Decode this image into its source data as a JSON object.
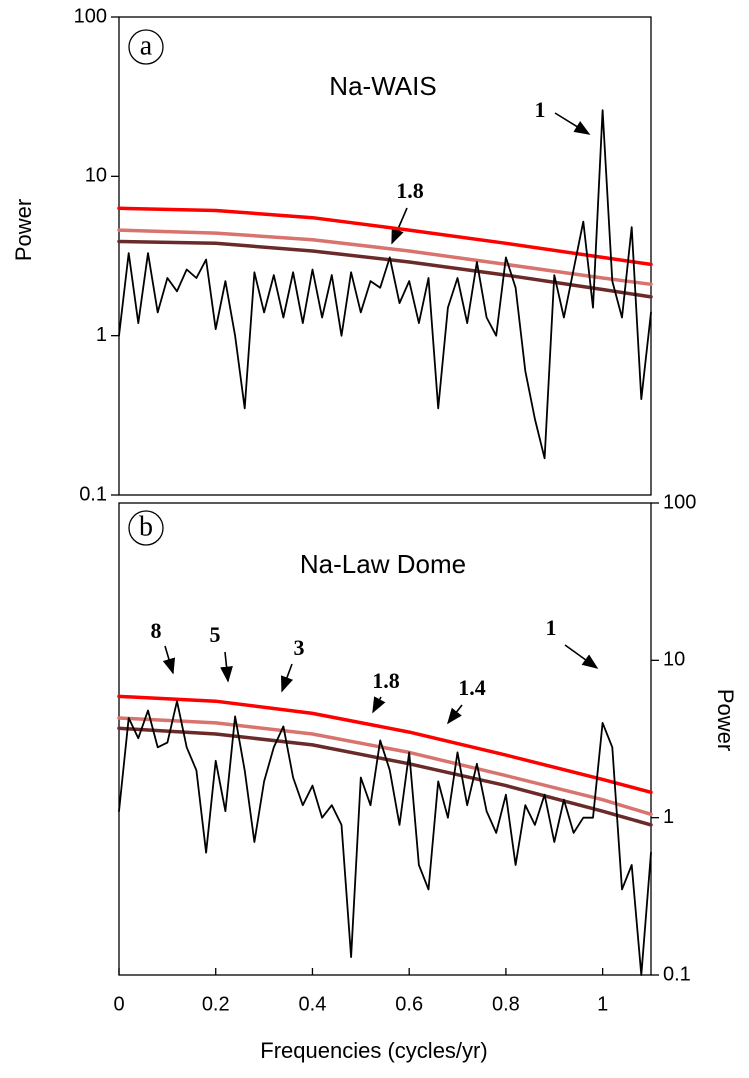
{
  "chart_data": [
    {
      "type": "line",
      "title": "Na-WAIS",
      "panel_label": "a",
      "y_label": "Power",
      "log_y": true,
      "y_axis_side": "left",
      "xlim": [
        0,
        1.1
      ],
      "ylim": [
        0.1,
        100
      ],
      "yticks": [
        0.1,
        1,
        10,
        100
      ],
      "x": [
        0,
        0.02,
        0.04,
        0.06,
        0.08,
        0.1,
        0.12,
        0.14,
        0.16,
        0.18,
        0.2,
        0.22,
        0.24,
        0.26,
        0.28,
        0.3,
        0.32,
        0.34,
        0.36,
        0.38,
        0.4,
        0.42,
        0.44,
        0.46,
        0.48,
        0.5,
        0.52,
        0.54,
        0.56,
        0.58,
        0.6,
        0.62,
        0.64,
        0.66,
        0.68,
        0.7,
        0.72,
        0.74,
        0.76,
        0.78,
        0.8,
        0.82,
        0.84,
        0.86,
        0.88,
        0.9,
        0.92,
        0.94,
        0.96,
        0.98,
        1,
        1.02,
        1.04,
        1.06,
        1.08,
        1.1
      ],
      "series": [
        {
          "color": "#000000",
          "values": [
            1.0,
            3.3,
            1.2,
            3.3,
            1.4,
            2.3,
            1.9,
            2.6,
            2.3,
            3.0,
            1.1,
            2.2,
            1.0,
            0.35,
            2.5,
            1.4,
            2.4,
            1.3,
            2.5,
            1.2,
            2.6,
            1.3,
            2.4,
            1.0,
            2.5,
            1.4,
            2.2,
            2.0,
            3.1,
            1.6,
            2.2,
            1.2,
            2.3,
            0.35,
            1.5,
            2.3,
            1.2,
            2.9,
            1.3,
            1.0,
            3.1,
            2.0,
            0.6,
            0.3,
            0.17,
            2.4,
            1.3,
            2.6,
            5.2,
            1.5,
            26,
            2.2,
            1.3,
            4.8,
            0.4,
            1.4
          ]
        },
        {
          "color": "#ff0000",
          "x": [
            0,
            0.2,
            0.4,
            0.6,
            0.8,
            1,
            1.1
          ],
          "values": [
            6.3,
            6.1,
            5.5,
            4.6,
            3.8,
            3.1,
            2.8
          ]
        },
        {
          "color": "#d9736e",
          "x": [
            0,
            0.2,
            0.4,
            0.6,
            0.8,
            1,
            1.1
          ],
          "values": [
            4.6,
            4.4,
            4.0,
            3.4,
            2.8,
            2.3,
            2.1
          ]
        },
        {
          "color": "#6b2a2a",
          "x": [
            0,
            0.2,
            0.4,
            0.6,
            0.8,
            1,
            1.1
          ],
          "values": [
            3.9,
            3.8,
            3.4,
            2.9,
            2.4,
            1.95,
            1.75
          ]
        }
      ],
      "annotations": [
        "1",
        "1.8"
      ]
    },
    {
      "type": "line",
      "title": "Na-Law Dome",
      "panel_label": "b",
      "y_label": "Power",
      "x_label": "Frequencies (cycles/yr)",
      "log_y": true,
      "y_axis_side": "right",
      "xlim": [
        0,
        1.1
      ],
      "ylim": [
        0.1,
        100
      ],
      "yticks": [
        0.1,
        1,
        10,
        100
      ],
      "xticks": [
        0,
        0.2,
        0.4,
        0.6,
        0.8,
        1
      ],
      "x": [
        0,
        0.02,
        0.04,
        0.06,
        0.08,
        0.1,
        0.12,
        0.14,
        0.16,
        0.18,
        0.2,
        0.22,
        0.24,
        0.26,
        0.28,
        0.3,
        0.32,
        0.34,
        0.36,
        0.38,
        0.4,
        0.42,
        0.44,
        0.46,
        0.48,
        0.5,
        0.52,
        0.54,
        0.56,
        0.58,
        0.6,
        0.62,
        0.64,
        0.66,
        0.68,
        0.7,
        0.72,
        0.74,
        0.76,
        0.78,
        0.8,
        0.82,
        0.84,
        0.86,
        0.88,
        0.9,
        0.92,
        0.94,
        0.96,
        0.98,
        1,
        1.02,
        1.04,
        1.06,
        1.08,
        1.1
      ],
      "series": [
        {
          "color": "#000000",
          "values": [
            1.1,
            4.3,
            3.2,
            4.8,
            2.8,
            3.0,
            5.5,
            2.8,
            2.0,
            0.6,
            2.3,
            1.1,
            4.4,
            2.0,
            0.7,
            1.7,
            2.8,
            3.8,
            1.8,
            1.2,
            1.6,
            1.0,
            1.2,
            0.9,
            0.13,
            1.8,
            1.2,
            3.1,
            2.0,
            0.9,
            2.6,
            0.5,
            0.35,
            1.7,
            1.0,
            2.6,
            1.2,
            2.2,
            1.1,
            0.8,
            1.4,
            0.5,
            1.2,
            0.9,
            1.4,
            0.7,
            1.3,
            0.8,
            1.0,
            1.0,
            4.0,
            2.8,
            0.35,
            0.5,
            0.1,
            0.6
          ]
        },
        {
          "color": "#ff0000",
          "x": [
            0,
            0.2,
            0.4,
            0.6,
            0.8,
            1,
            1.1
          ],
          "values": [
            5.9,
            5.5,
            4.6,
            3.5,
            2.5,
            1.75,
            1.45
          ]
        },
        {
          "color": "#d9736e",
          "x": [
            0,
            0.2,
            0.4,
            0.6,
            0.8,
            1,
            1.1
          ],
          "values": [
            4.3,
            4.0,
            3.4,
            2.6,
            1.85,
            1.3,
            1.05
          ]
        },
        {
          "color": "#6b2a2a",
          "x": [
            0,
            0.2,
            0.4,
            0.6,
            0.8,
            1,
            1.1
          ],
          "values": [
            3.7,
            3.4,
            2.9,
            2.2,
            1.6,
            1.1,
            0.9
          ]
        }
      ],
      "annotations": [
        "8",
        "5",
        "3",
        "1.8",
        "1.4",
        "1"
      ]
    }
  ]
}
